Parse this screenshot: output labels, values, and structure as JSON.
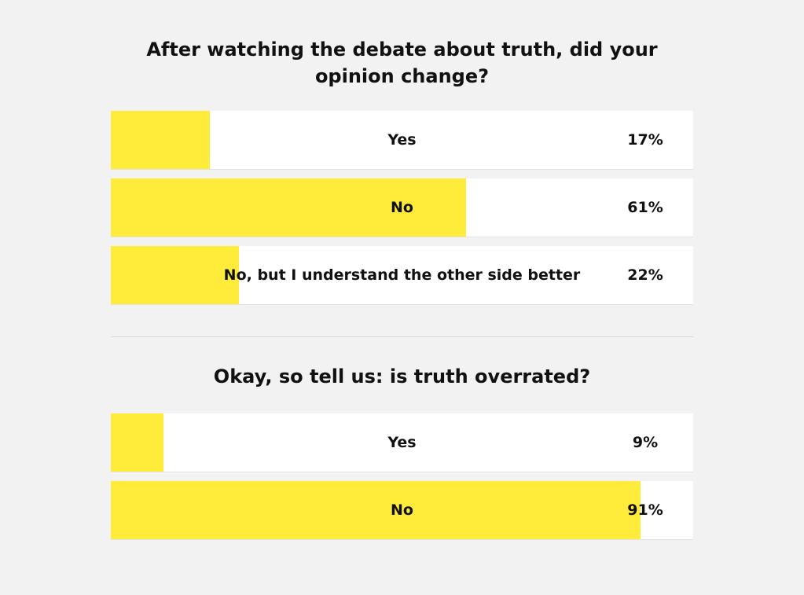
{
  "polls": [
    {
      "question": "After watching the debate about truth, did your opinion change?",
      "options": [
        {
          "label": "Yes",
          "percent_text": "17%",
          "percent": 17
        },
        {
          "label": "No",
          "percent_text": "61%",
          "percent": 61
        },
        {
          "label": "No, but I understand the other side better",
          "percent_text": "22%",
          "percent": 22
        }
      ]
    },
    {
      "question": "Okay, so tell us: is truth overrated?",
      "options": [
        {
          "label": "Yes",
          "percent_text": "9%",
          "percent": 9
        },
        {
          "label": "No",
          "percent_text": "91%",
          "percent": 91
        }
      ]
    }
  ],
  "colors": {
    "background": "#f2f2f2",
    "row": "#ffffff",
    "bar": "#ffec3a",
    "text": "#111111"
  }
}
